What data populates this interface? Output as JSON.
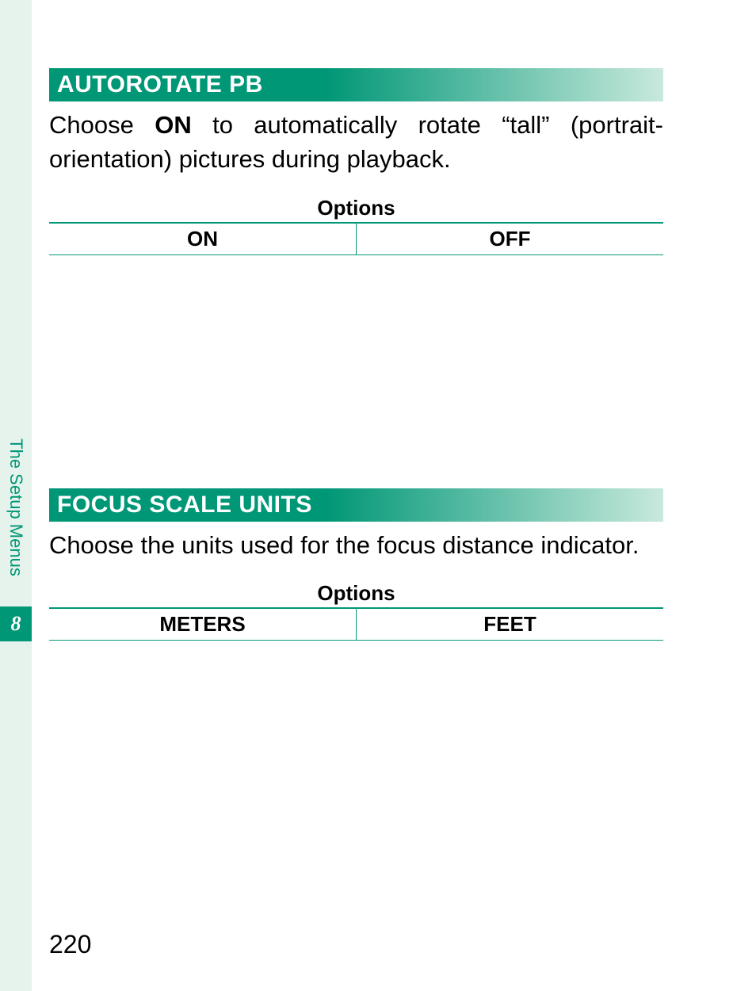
{
  "colors": {
    "accent": "#009776",
    "sidebar_bg": "#e5f3ec",
    "gradient_end": "#c8e9dc",
    "text": "#000000",
    "header_text": "#ffffff"
  },
  "sidebar": {
    "label": "The Setup Menus",
    "chapter_number": "8"
  },
  "sections": [
    {
      "title": "AUTOROTATE PB",
      "description_pre": "Choose ",
      "description_bold": "ON",
      "description_post": " to automatically rotate “tall” (portrait-orientation) pictures during playback.",
      "options_label": "Options",
      "options": [
        "ON",
        "OFF"
      ]
    },
    {
      "title": "FOCUS SCALE UNITS",
      "description_pre": "Choose the units used for the focus distance indicator.",
      "description_bold": "",
      "description_post": "",
      "options_label": "Options",
      "options": [
        "METERS",
        "FEET"
      ]
    }
  ],
  "page_number": "220"
}
